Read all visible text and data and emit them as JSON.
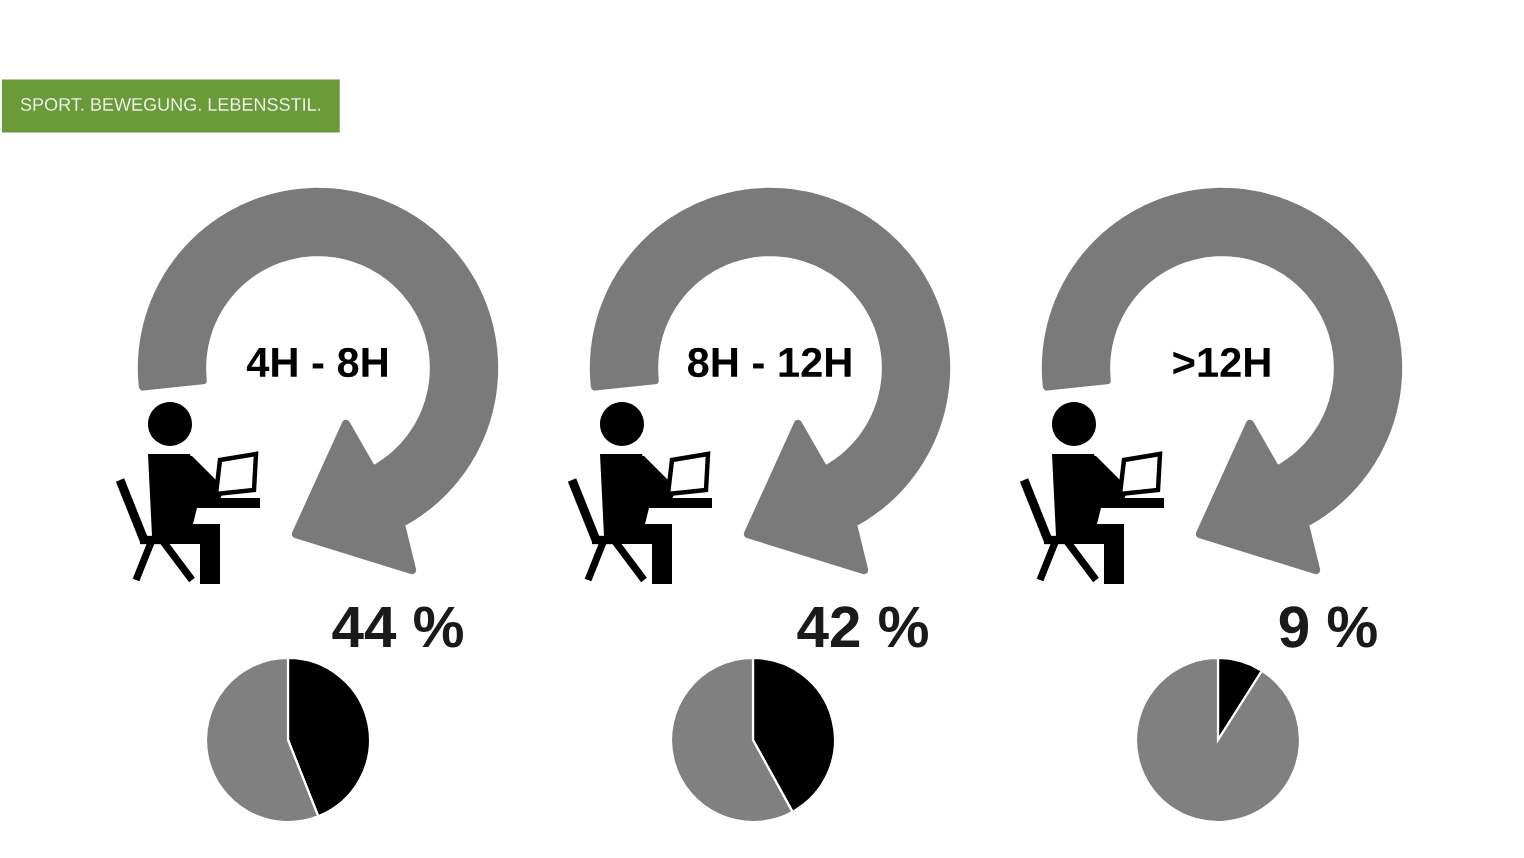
{
  "chart_data": [
    {
      "type": "pie",
      "title": "4H - 8H",
      "categories": [
        null,
        null
      ],
      "values": [
        44,
        56
      ],
      "colors": [
        "#000000",
        "#808080"
      ],
      "value_labels": [
        "44 %",
        null
      ],
      "annotations": [
        "SPORT. BEWEGUNG. LEBENSSTIL."
      ]
    },
    {
      "type": "pie",
      "title": "8H - 12H",
      "categories": [
        null,
        null
      ],
      "values": [
        42,
        58
      ],
      "colors": [
        "#000000",
        "#808080"
      ],
      "value_labels": [
        "42 %",
        null
      ]
    },
    {
      "type": "pie",
      "title": ">12H",
      "categories": [
        null,
        null
      ],
      "values": [
        9,
        91
      ],
      "colors": [
        "#000000",
        "#808080"
      ],
      "value_labels": [
        "9 %",
        null
      ]
    }
  ]
}
